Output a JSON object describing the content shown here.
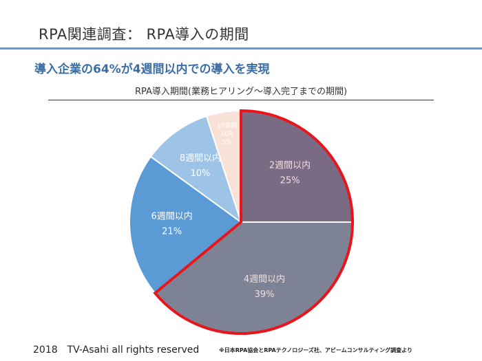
{
  "slide": {
    "title": "RPA関連調査： RPA導入の期間",
    "subtitle": "導入企業の64%が4週間以内での導入を実現",
    "footer": "2018　TV-Asahi all rights reserved",
    "source": "※日本RPA協会とRPAテクノロジーズ社、アビームコンサルティング調査より"
  },
  "chart_data": {
    "type": "pie",
    "title": "RPA導入期間(業務ヒアリング～導入完了までの期間)",
    "slices": [
      {
        "label": "2週間以内",
        "value": 25,
        "value_label": "25%",
        "color": "#7a6a84",
        "label_color": "#f2dede"
      },
      {
        "label": "4週間以内",
        "value": 39,
        "value_label": "39%",
        "color": "#7d8394",
        "label_color": "#f2dede"
      },
      {
        "label": "6週間以内",
        "value": 21,
        "value_label": "21%",
        "color": "#5b9bd5",
        "label_color": "#ffffff"
      },
      {
        "label": "8週間以内",
        "value": 10,
        "value_label": "10%",
        "color": "#9dc3e6",
        "label_color": "#ffffff"
      },
      {
        "label": "10週間以内",
        "value": 5,
        "value_label": "5%",
        "color": "#f8e1d6",
        "label_color": "#ffffff"
      }
    ],
    "highlight": {
      "slices": [
        "2週間以内",
        "4週間以内"
      ],
      "color": "#e8161c"
    }
  }
}
